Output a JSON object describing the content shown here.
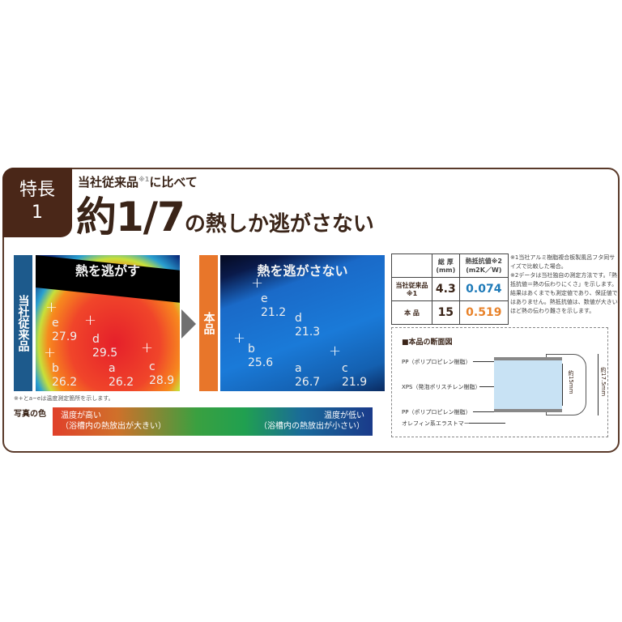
{
  "header": {
    "tab_line1": "特長",
    "tab_line2": "1",
    "subtitle": "当社従来品",
    "subtitle_note": "※1",
    "subtitle_suffix": "に比べて",
    "headline_big": "約1/7",
    "headline_rest": "の熱しか逃がさない"
  },
  "comparison": {
    "conventional": {
      "label": "当社従来品",
      "title": "熱を逃がす",
      "points": [
        {
          "id": "e",
          "value": "27.9"
        },
        {
          "id": "d",
          "value": "29.5"
        },
        {
          "id": "b",
          "value": "26.2"
        },
        {
          "id": "a",
          "value": "26.2"
        },
        {
          "id": "c",
          "value": "28.9"
        }
      ],
      "color": "#1d5a8c"
    },
    "product": {
      "label": "本品",
      "title": "熱を逃がさない",
      "points": [
        {
          "id": "e",
          "value": "21.2"
        },
        {
          "id": "d",
          "value": "21.3"
        },
        {
          "id": "b",
          "value": "25.6"
        },
        {
          "id": "a",
          "value": "26.7"
        },
        {
          "id": "c",
          "value": "21.9"
        }
      ],
      "color": "#e8762a"
    },
    "note": "※+とa~eは温度測定箇所を示します。"
  },
  "legend": {
    "label": "写真の色",
    "high_line1": "温度が高い",
    "high_line2": "（浴槽内の熱放出が大きい）",
    "low_line1": "温度が低い",
    "low_line2": "（浴槽内の熱放出が小さい）"
  },
  "table": {
    "headers": [
      "",
      "総 厚\n(mm)",
      "熱抵抗値※2\n(m2K／W)"
    ],
    "rows": [
      {
        "name": "当社従来品※1",
        "thickness": "4.3",
        "resistance": "0.074"
      },
      {
        "name": "本 品",
        "thickness": "15",
        "resistance": "0.519"
      }
    ]
  },
  "notes": [
    "※1当社アルミ樹脂複合板製風呂フタ同サイズで比較した場合。",
    "※2データは当社独自の測定方法です。「熱抵抗値＝熱の伝わりにくさ」を示します。結果はあくまでも測定値であり、保証値ではありません。熱抵抗値は、数値が大きいほど熱の伝わり難さを示します。"
  ],
  "cross_section": {
    "title": "■本品の断面図",
    "labels": [
      "PP（ポリプロピレン樹脂）",
      "XPS（発泡ポリスチレン樹脂）",
      "PP（ポリプロピレン樹脂）",
      "オレフィン系エラストマー"
    ],
    "dim_inner": "約15mm",
    "dim_outer": "約17.5mm"
  }
}
